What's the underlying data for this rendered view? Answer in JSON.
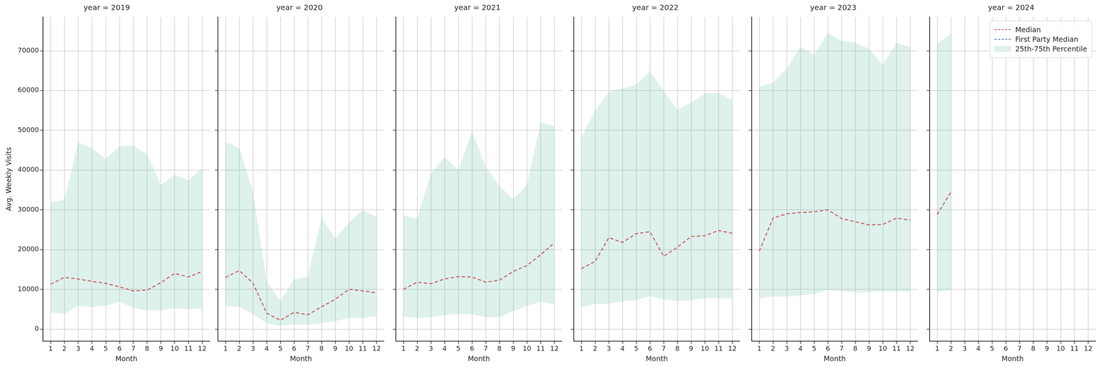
{
  "chart_data": [
    {
      "type": "line",
      "title": "year = 2019",
      "x_label": "Month",
      "y_label": "Avg. Weekly Visits",
      "x": [
        1,
        2,
        3,
        4,
        5,
        6,
        7,
        8,
        9,
        10,
        11,
        12
      ],
      "xlim": [
        0.45,
        12.55
      ],
      "xticks": [
        1,
        2,
        3,
        4,
        5,
        6,
        7,
        8,
        9,
        10,
        11,
        12
      ],
      "ylim": [
        -3000,
        78500
      ],
      "yticks": [
        0,
        10000,
        20000,
        30000,
        40000,
        50000,
        60000,
        70000
      ],
      "grid": true,
      "series": [
        {
          "name": "25th-75th Percentile",
          "type": "area",
          "color": "#5fb9a033",
          "lower": [
            4200,
            3800,
            5800,
            5500,
            5900,
            6900,
            5300,
            4700,
            4700,
            5300,
            5000,
            5200
          ],
          "upper": [
            32000,
            32500,
            47000,
            45500,
            42800,
            46000,
            46200,
            44000,
            36200,
            38800,
            37400,
            40500
          ]
        },
        {
          "name": "Median",
          "type": "line",
          "color": "#c44e52",
          "line_style": "dashed",
          "marker": "none",
          "values": [
            11300,
            13000,
            12600,
            12000,
            11500,
            10600,
            9600,
            9800,
            11700,
            14000,
            13100,
            14500
          ]
        },
        {
          "name": "First Party Median",
          "type": "line",
          "color": "#4c72b0",
          "line_style": "dashed",
          "marker": "none",
          "values": [
            null,
            null,
            null,
            null,
            null,
            null,
            null,
            null,
            null,
            null,
            null,
            null
          ]
        }
      ]
    },
    {
      "type": "line",
      "title": "year = 2020",
      "x_label": "Month",
      "tick_labels": "x",
      "x": [
        1,
        2,
        3,
        4,
        5,
        6,
        7,
        8,
        9,
        10,
        11,
        12
      ],
      "xlim": [
        0.45,
        12.55
      ],
      "xticks": [
        1,
        2,
        3,
        4,
        5,
        6,
        7,
        8,
        9,
        10,
        11,
        12
      ],
      "ylim": [
        -3000,
        78500
      ],
      "yticks": [
        0,
        10000,
        20000,
        30000,
        40000,
        50000,
        60000,
        70000
      ],
      "grid": true,
      "series": [
        {
          "name": "25th-75th Percentile",
          "type": "area",
          "color": "#5fb9a033",
          "lower": [
            5800,
            5500,
            3800,
            1500,
            800,
            1200,
            1100,
            1500,
            2000,
            2800,
            2800,
            3200
          ],
          "upper": [
            47000,
            45500,
            34500,
            12000,
            7000,
            12500,
            13200,
            28000,
            22800,
            26800,
            30000,
            28200
          ]
        },
        {
          "name": "Median",
          "type": "line",
          "color": "#c44e52",
          "line_style": "dashed",
          "marker": "none",
          "values": [
            13000,
            14700,
            11600,
            4000,
            2200,
            4200,
            3600,
            5600,
            7500,
            10000,
            9600,
            9100
          ]
        },
        {
          "name": "First Party Median",
          "type": "line",
          "color": "#4c72b0",
          "line_style": "dashed",
          "marker": "none",
          "values": [
            null,
            null,
            null,
            null,
            null,
            null,
            null,
            null,
            null,
            null,
            null,
            null
          ]
        }
      ]
    },
    {
      "type": "line",
      "title": "year = 2021",
      "x_label": "Month",
      "tick_labels": "x",
      "x": [
        1,
        2,
        3,
        4,
        5,
        6,
        7,
        8,
        9,
        10,
        11,
        12
      ],
      "xlim": [
        0.45,
        12.55
      ],
      "xticks": [
        1,
        2,
        3,
        4,
        5,
        6,
        7,
        8,
        9,
        10,
        11,
        12
      ],
      "ylim": [
        -3000,
        78500
      ],
      "yticks": [
        0,
        10000,
        20000,
        30000,
        40000,
        50000,
        60000,
        70000
      ],
      "grid": true,
      "series": [
        {
          "name": "25th-75th Percentile",
          "type": "area",
          "color": "#5fb9a033",
          "lower": [
            3200,
            2800,
            3000,
            3500,
            3800,
            3700,
            3000,
            3000,
            4500,
            5800,
            6800,
            6300
          ],
          "upper": [
            28500,
            27800,
            39000,
            43300,
            40000,
            49700,
            40800,
            36000,
            32700,
            36300,
            52000,
            51000
          ]
        },
        {
          "name": "Median",
          "type": "line",
          "color": "#c44e52",
          "line_style": "dashed",
          "marker": "none",
          "values": [
            10000,
            11800,
            11400,
            12600,
            13200,
            13100,
            11800,
            12300,
            14500,
            16000,
            18700,
            21700
          ]
        },
        {
          "name": "First Party Median",
          "type": "line",
          "color": "#4c72b0",
          "line_style": "dashed",
          "marker": "none",
          "values": [
            null,
            null,
            null,
            null,
            null,
            null,
            null,
            null,
            null,
            null,
            null,
            null
          ]
        }
      ]
    },
    {
      "type": "line",
      "title": "year = 2022",
      "x_label": "Month",
      "tick_labels": "x",
      "x": [
        1,
        2,
        3,
        4,
        5,
        6,
        7,
        8,
        9,
        10,
        11,
        12
      ],
      "xlim": [
        0.45,
        12.55
      ],
      "xticks": [
        1,
        2,
        3,
        4,
        5,
        6,
        7,
        8,
        9,
        10,
        11,
        12
      ],
      "ylim": [
        -3000,
        78500
      ],
      "yticks": [
        0,
        10000,
        20000,
        30000,
        40000,
        50000,
        60000,
        70000
      ],
      "grid": true,
      "series": [
        {
          "name": "25th-75th Percentile",
          "type": "area",
          "color": "#5fb9a033",
          "lower": [
            5500,
            6300,
            6400,
            7000,
            7300,
            8300,
            7500,
            7000,
            7300,
            7800,
            7800,
            7600
          ],
          "upper": [
            48000,
            55000,
            59600,
            60500,
            61500,
            64800,
            60000,
            55200,
            57000,
            59200,
            59500,
            57500
          ]
        },
        {
          "name": "Median",
          "type": "line",
          "color": "#c44e52",
          "line_style": "dashed",
          "marker": "none",
          "values": [
            15200,
            17000,
            23000,
            21800,
            24000,
            24500,
            18300,
            20600,
            23300,
            23500,
            24800,
            24100
          ]
        },
        {
          "name": "First Party Median",
          "type": "line",
          "color": "#4c72b0",
          "line_style": "dashed",
          "marker": "none",
          "values": [
            null,
            null,
            null,
            null,
            null,
            null,
            null,
            null,
            null,
            null,
            null,
            null
          ]
        }
      ]
    },
    {
      "type": "line",
      "title": "year = 2023",
      "x_label": "Month",
      "tick_labels": "x",
      "x": [
        1,
        2,
        3,
        4,
        5,
        6,
        7,
        8,
        9,
        10,
        11,
        12
      ],
      "xlim": [
        0.45,
        12.55
      ],
      "xticks": [
        1,
        2,
        3,
        4,
        5,
        6,
        7,
        8,
        9,
        10,
        11,
        12
      ],
      "ylim": [
        -3000,
        78500
      ],
      "yticks": [
        0,
        10000,
        20000,
        30000,
        40000,
        50000,
        60000,
        70000
      ],
      "grid": true,
      "series": [
        {
          "name": "25th-75th Percentile",
          "type": "area",
          "color": "#5fb9a033",
          "lower": [
            7700,
            8200,
            8200,
            8500,
            8800,
            9800,
            9600,
            9200,
            9300,
            9500,
            9500,
            9400
          ],
          "upper": [
            61000,
            62000,
            65500,
            71000,
            69000,
            74500,
            72500,
            72000,
            70500,
            66500,
            72000,
            71000
          ]
        },
        {
          "name": "Median",
          "type": "line",
          "color": "#c44e52",
          "line_style": "dashed",
          "marker": "none",
          "values": [
            19600,
            27900,
            29000,
            29300,
            29500,
            30000,
            27800,
            27000,
            26200,
            26300,
            27900,
            27400
          ]
        },
        {
          "name": "First Party Median",
          "type": "line",
          "color": "#4c72b0",
          "line_style": "dashed",
          "marker": "none",
          "values": [
            null,
            null,
            null,
            null,
            null,
            null,
            null,
            null,
            null,
            null,
            null,
            null
          ]
        }
      ]
    },
    {
      "type": "line",
      "title": "year = 2024",
      "x_label": "Month",
      "tick_labels": "x",
      "legend": "upper right",
      "x": [
        1,
        2
      ],
      "xlim": [
        0.45,
        12.55
      ],
      "xticks": [
        1,
        2,
        3,
        4,
        5,
        6,
        7,
        8,
        9,
        10,
        11,
        12
      ],
      "ylim": [
        -3000,
        78500
      ],
      "yticks": [
        0,
        10000,
        20000,
        30000,
        40000,
        50000,
        60000,
        70000
      ],
      "grid": true,
      "series": [
        {
          "name": "25th-75th Percentile",
          "type": "area",
          "color": "#5fb9a033",
          "lower": [
            9300,
            9900
          ],
          "upper": [
            71800,
            74200
          ]
        },
        {
          "name": "Median",
          "type": "line",
          "color": "#c44e52",
          "line_style": "dashed",
          "marker": "none",
          "values": [
            28800,
            34500
          ]
        },
        {
          "name": "First Party Median",
          "type": "line",
          "color": "#4c72b0",
          "line_style": "dashed",
          "marker": "none",
          "values": [
            null,
            null
          ]
        }
      ]
    }
  ]
}
